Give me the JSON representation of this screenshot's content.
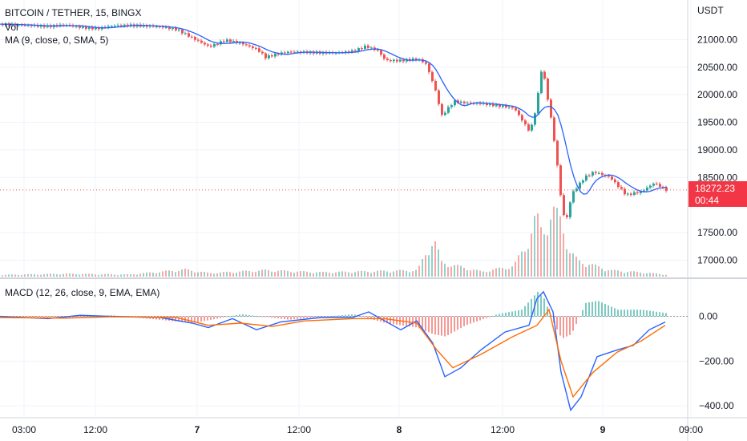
{
  "header": {
    "symbol_line": "BITCOIN / TETHER, 15, BINGX",
    "vol_label": "Vol",
    "ma_label": "MA (9, close, 0, SMA, 5)",
    "macd_label": "MACD (12, 26, close, 9, EMA, EMA)",
    "currency": "USDT"
  },
  "last_price": {
    "value": "18272.23",
    "countdown": "00:44",
    "color": "#f23645"
  },
  "colors": {
    "up": "#26a69a",
    "down": "#ef5350",
    "ma": "#2962ff",
    "macd_line": "#2962ff",
    "signal_line": "#ff6d00",
    "grid": "#f0f3fa",
    "axis_text": "#131722"
  },
  "chart_data": [
    {
      "type": "candlestick",
      "title": "BITCOIN / TETHER, 15, BINGX",
      "ylabel": "USDT",
      "ylim": [
        16700,
        21500
      ],
      "y_ticks": [
        "21000.00",
        "20500.00",
        "20000.00",
        "19500.00",
        "19000.00",
        "18500.00",
        "17500.00",
        "17000.00"
      ],
      "x_ticks": [
        "03:00",
        "12:00",
        "7",
        "12:00",
        "8",
        "12:00",
        "9",
        "09:00"
      ],
      "close_path": [
        [
          0,
          21280
        ],
        [
          30,
          21260
        ],
        [
          60,
          21240
        ],
        [
          80,
          21270
        ],
        [
          100,
          21220
        ],
        [
          120,
          21200
        ],
        [
          140,
          21250
        ],
        [
          160,
          21260
        ],
        [
          180,
          21250
        ],
        [
          200,
          21230
        ],
        [
          220,
          21180
        ],
        [
          240,
          21020
        ],
        [
          260,
          20870
        ],
        [
          280,
          20990
        ],
        [
          300,
          20930
        ],
        [
          320,
          20820
        ],
        [
          330,
          20680
        ],
        [
          345,
          20740
        ],
        [
          360,
          20780
        ],
        [
          380,
          20770
        ],
        [
          400,
          20760
        ],
        [
          420,
          20760
        ],
        [
          440,
          20790
        ],
        [
          455,
          20880
        ],
        [
          470,
          20800
        ],
        [
          480,
          20620
        ],
        [
          500,
          20620
        ],
        [
          520,
          20650
        ],
        [
          530,
          20560
        ],
        [
          540,
          20180
        ],
        [
          550,
          19620
        ],
        [
          565,
          19880
        ],
        [
          580,
          19850
        ],
        [
          600,
          19840
        ],
        [
          620,
          19800
        ],
        [
          640,
          19760
        ],
        [
          660,
          19320
        ],
        [
          668,
          19800
        ],
        [
          675,
          20540
        ],
        [
          680,
          20100
        ],
        [
          688,
          19400
        ],
        [
          695,
          18600
        ],
        [
          700,
          17900
        ],
        [
          705,
          17700
        ],
        [
          712,
          18200
        ],
        [
          720,
          18350
        ],
        [
          728,
          18500
        ],
        [
          740,
          18600
        ],
        [
          760,
          18500
        ],
        [
          780,
          18180
        ],
        [
          800,
          18250
        ],
        [
          815,
          18400
        ],
        [
          830,
          18272
        ]
      ],
      "volume": [
        [
          0,
          5
        ],
        [
          80,
          8
        ],
        [
          160,
          6
        ],
        [
          230,
          20
        ],
        [
          260,
          10
        ],
        [
          330,
          18
        ],
        [
          400,
          12
        ],
        [
          480,
          16
        ],
        [
          520,
          18
        ],
        [
          540,
          110
        ],
        [
          550,
          40
        ],
        [
          600,
          14
        ],
        [
          640,
          30
        ],
        [
          660,
          110
        ],
        [
          668,
          170
        ],
        [
          675,
          130
        ],
        [
          680,
          150
        ],
        [
          690,
          180
        ],
        [
          700,
          160
        ],
        [
          710,
          70
        ],
        [
          720,
          45
        ],
        [
          760,
          18
        ],
        [
          800,
          12
        ],
        [
          830,
          6
        ]
      ]
    },
    {
      "type": "line",
      "title": "MACD (12, 26, close, 9, EMA, EMA)",
      "ylim": [
        -450,
        160
      ],
      "y_ticks": [
        "0.00",
        "−200.00",
        "−400.00"
      ],
      "x_ticks": [
        "03:00",
        "12:00",
        "7",
        "12:00",
        "8",
        "12:00",
        "9",
        "09:00"
      ],
      "series": [
        {
          "role": "macd",
          "points": [
            [
              0,
              0
            ],
            [
              60,
              -10
            ],
            [
              100,
              5
            ],
            [
              140,
              0
            ],
            [
              200,
              -5
            ],
            [
              240,
              -30
            ],
            [
              260,
              -50
            ],
            [
              290,
              -10
            ],
            [
              320,
              -60
            ],
            [
              350,
              -25
            ],
            [
              400,
              -5
            ],
            [
              440,
              -5
            ],
            [
              460,
              20
            ],
            [
              480,
              -20
            ],
            [
              500,
              -60
            ],
            [
              520,
              -20
            ],
            [
              540,
              -120
            ],
            [
              555,
              -270
            ],
            [
              575,
              -230
            ],
            [
              600,
              -150
            ],
            [
              630,
              -70
            ],
            [
              660,
              -40
            ],
            [
              670,
              80
            ],
            [
              678,
              110
            ],
            [
              690,
              20
            ],
            [
              700,
              -250
            ],
            [
              712,
              -420
            ],
            [
              725,
              -360
            ],
            [
              745,
              -180
            ],
            [
              770,
              -150
            ],
            [
              790,
              -130
            ],
            [
              810,
              -60
            ],
            [
              830,
              -25
            ]
          ]
        },
        {
          "role": "signal",
          "points": [
            [
              0,
              -5
            ],
            [
              80,
              -8
            ],
            [
              140,
              -2
            ],
            [
              220,
              -5
            ],
            [
              260,
              -40
            ],
            [
              300,
              -30
            ],
            [
              340,
              -45
            ],
            [
              380,
              -20
            ],
            [
              440,
              -10
            ],
            [
              480,
              -10
            ],
            [
              520,
              -30
            ],
            [
              545,
              -150
            ],
            [
              565,
              -230
            ],
            [
              600,
              -170
            ],
            [
              640,
              -90
            ],
            [
              670,
              -40
            ],
            [
              685,
              30
            ],
            [
              700,
              -200
            ],
            [
              715,
              -360
            ],
            [
              740,
              -250
            ],
            [
              770,
              -160
            ],
            [
              800,
              -110
            ],
            [
              830,
              -40
            ]
          ]
        }
      ],
      "histogram": [
        [
          0,
          -5
        ],
        [
          60,
          -10
        ],
        [
          140,
          5
        ],
        [
          240,
          -30
        ],
        [
          300,
          10
        ],
        [
          360,
          -15
        ],
        [
          440,
          10
        ],
        [
          480,
          -30
        ],
        [
          520,
          -50
        ],
        [
          540,
          -80
        ],
        [
          555,
          -90
        ],
        [
          580,
          -40
        ],
        [
          620,
          10
        ],
        [
          650,
          30
        ],
        [
          670,
          110
        ],
        [
          678,
          80
        ],
        [
          690,
          -30
        ],
        [
          700,
          -100
        ],
        [
          712,
          -80
        ],
        [
          730,
          60
        ],
        [
          745,
          70
        ],
        [
          770,
          30
        ],
        [
          800,
          30
        ],
        [
          830,
          15
        ]
      ]
    }
  ]
}
